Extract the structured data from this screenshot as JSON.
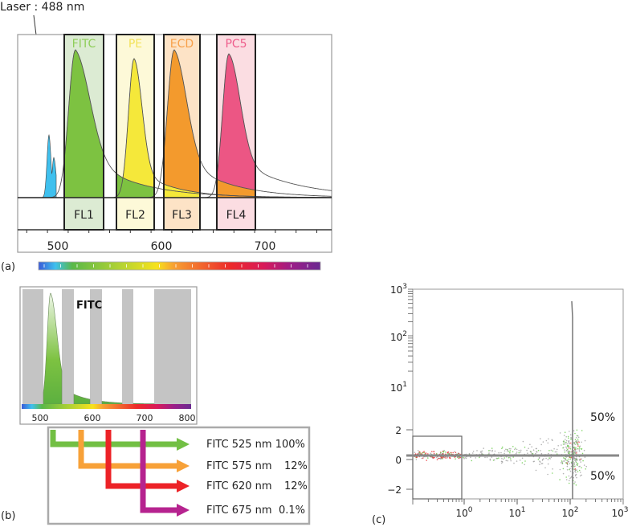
{
  "panel_a": {
    "panel_label": "(a)",
    "laser_label": "Laser : 488 nm",
    "dyes": [
      {
        "name": "FITC",
        "color": "#7dc241",
        "label_color": "#8fce5a",
        "band_bg": "#dcebd3"
      },
      {
        "name": "PE",
        "color": "#f5e83a",
        "label_color": "#f3e25a",
        "band_bg": "#fdf9d8"
      },
      {
        "name": "ECD",
        "color": "#f39a2d",
        "label_color": "#f7a04a",
        "band_bg": "#fde3c6"
      },
      {
        "name": "PC5",
        "color": "#ec5684",
        "label_color": "#ee5d8c",
        "band_bg": "#fbdde2"
      }
    ],
    "laser_color": "#3fc0ee",
    "bands": [
      "FL1",
      "FL2",
      "FL3",
      "FL4"
    ],
    "x_ticks": [
      "500",
      "600",
      "700"
    ]
  },
  "panel_b": {
    "panel_label": "(b)",
    "title": "FITC",
    "x_ticks": [
      "500",
      "600",
      "700",
      "800"
    ],
    "rows": [
      {
        "dye": "FITC",
        "wavelength": "525 nm",
        "percent": "100%",
        "color": "#72bf44"
      },
      {
        "dye": "FITC",
        "wavelength": "575 nm",
        "percent": "12%",
        "color": "#f7a138"
      },
      {
        "dye": "FITC",
        "wavelength": "620 nm",
        "percent": "12%",
        "color": "#ec2227"
      },
      {
        "dye": "FITC",
        "wavelength": "675 nm",
        "percent": "0.1%",
        "color": "#b6238f"
      }
    ]
  },
  "panel_c": {
    "panel_label": "(c)",
    "y_ticks": [
      {
        "base": "10",
        "exp": "3"
      },
      {
        "base": "10",
        "exp": "2"
      },
      {
        "base": "10",
        "exp": "1"
      },
      {
        "base": "2",
        "exp": ""
      },
      {
        "base": "0",
        "exp": ""
      },
      {
        "base": "−2",
        "exp": ""
      }
    ],
    "x_ticks": [
      {
        "base": "10",
        "exp": "0"
      },
      {
        "base": "10",
        "exp": "1"
      },
      {
        "base": "10",
        "exp": "2"
      },
      {
        "base": "10",
        "exp": "3"
      }
    ],
    "quadrant_upper": "50%",
    "quadrant_lower": "50%",
    "point_colors": [
      "#9a9a9a",
      "#5cc83a",
      "#e8262a"
    ]
  }
}
